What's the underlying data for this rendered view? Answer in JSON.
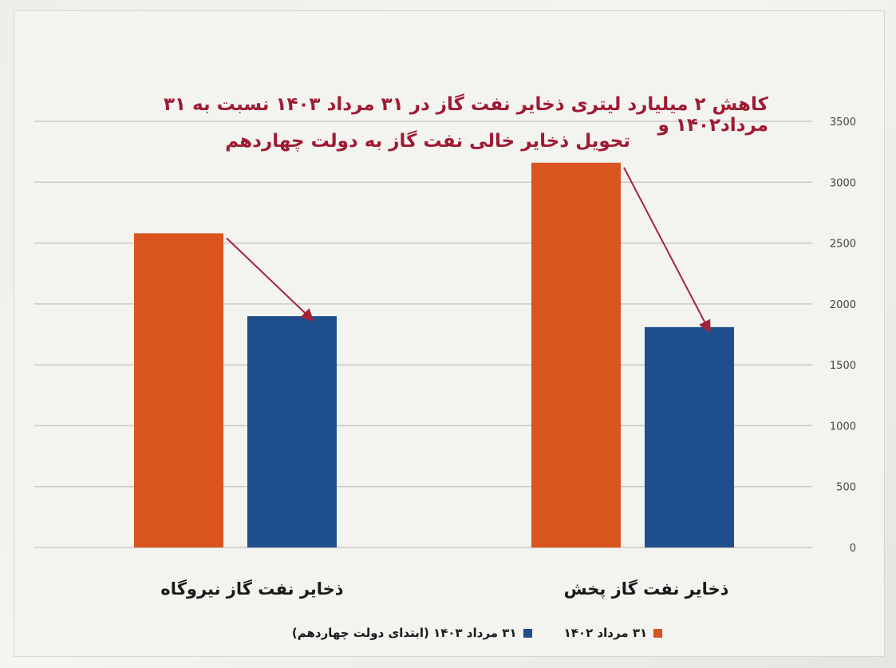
{
  "chart_data": {
    "type": "bar",
    "title": [
      "کاهش ۲ میلیارد لیتری ذخایر نفت گاز در ۳۱ مرداد ۱۴۰۳ نسبت به ۳۱ مرداد۱۴۰۲ و",
      "تحویل ذخایر خالی نفت گاز به دولت چهاردهم"
    ],
    "categories": [
      "ذخایر نفت گاز نیروگاه",
      "ذخایر نفت گاز پخش"
    ],
    "series": [
      {
        "name": "۳۱ مرداد ۱۴۰۲",
        "color": "#d9541e",
        "values": [
          2580,
          3160
        ]
      },
      {
        "name": "۳۱ مرداد ۱۴۰۳ (ابتدای دولت چهاردهم)",
        "color": "#1f4e8c",
        "values": [
          1900,
          1810
        ]
      }
    ],
    "ylim": [
      0,
      3500
    ],
    "yticks": [
      "0",
      "500",
      "1000",
      "1500",
      "2000",
      "2500",
      "3000",
      "3500"
    ],
    "grid": true,
    "legend_position": "bottom",
    "annotation_color": "#a3243a"
  }
}
